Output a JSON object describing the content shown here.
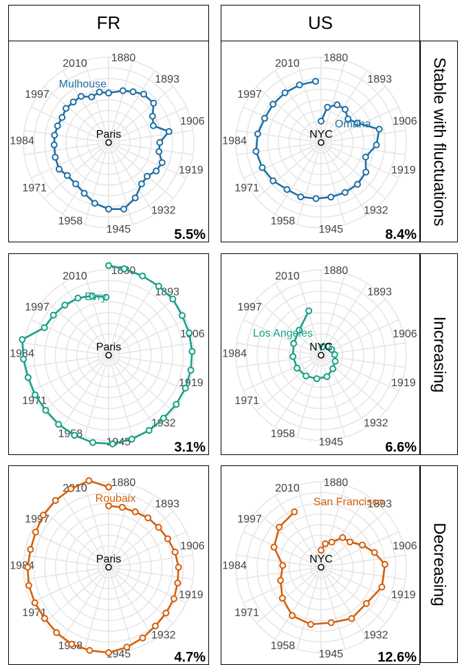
{
  "columns": [
    {
      "label": "FR",
      "center": "Paris"
    },
    {
      "label": "US",
      "center": "NYC"
    }
  ],
  "rows": [
    {
      "label": "Stable with fluctuations",
      "color": "#1f6fa6"
    },
    {
      "label": "Increasing",
      "color": "#16a085"
    },
    {
      "label": "Decreasing",
      "color": "#d35f0b"
    }
  ],
  "year_ticks": [
    "1880",
    "1893",
    "1906",
    "1919",
    "1932",
    "1945",
    "1958",
    "1971",
    "1984",
    "1997",
    "2010"
  ],
  "chart_data": [
    {
      "type": "line",
      "subtype": "polar",
      "panel": "FR / Stable with fluctuations",
      "city": "Mulhouse",
      "share": "5.5%",
      "color": "#1f6fa6",
      "x": [
        1876,
        1882,
        1886,
        1890,
        1895,
        1899,
        1903,
        1907,
        1911,
        1915,
        1919,
        1923,
        1927,
        1931,
        1936,
        1941,
        1946,
        1951,
        1956,
        1961,
        1966,
        1970,
        1975,
        1980,
        1984,
        1988,
        1992,
        1996,
        2000,
        2004,
        2008,
        2012,
        2016
      ],
      "y": [
        0.58,
        0.63,
        0.66,
        0.7,
        0.7,
        0.6,
        0.56,
        0.72,
        0.6,
        0.6,
        0.67,
        0.65,
        0.6,
        0.62,
        0.72,
        0.8,
        0.78,
        0.73,
        0.66,
        0.62,
        0.62,
        0.66,
        0.65,
        0.64,
        0.64,
        0.63,
        0.62,
        0.64,
        0.63,
        0.63,
        0.57,
        0.6,
        0.58
      ]
    },
    {
      "type": "line",
      "subtype": "polar",
      "panel": "US / Stable with fluctuations",
      "city": "Omaha",
      "share": "8.4%",
      "color": "#1f6fa6",
      "x": [
        1876,
        1880,
        1885,
        1890,
        1895,
        1900,
        1906,
        1912,
        1918,
        1924,
        1930,
        1936,
        1942,
        1948,
        1954,
        1960,
        1966,
        1972,
        1978,
        1984,
        1990,
        1996,
        2002,
        2008,
        2014
      ],
      "y": [
        0.25,
        0.42,
        0.48,
        0.48,
        0.42,
        0.48,
        0.7,
        0.65,
        0.55,
        0.63,
        0.65,
        0.65,
        0.65,
        0.66,
        0.68,
        0.68,
        0.72,
        0.75,
        0.77,
        0.75,
        0.72,
        0.72,
        0.72,
        0.72,
        0.72
      ]
    },
    {
      "type": "line",
      "subtype": "polar",
      "panel": "FR / Increasing",
      "city": "Evry",
      "share": "3.1%",
      "color": "#16a085",
      "x": [
        1876,
        1880,
        1885,
        1890,
        1895,
        1900,
        1905,
        1910,
        1915,
        1920,
        1925,
        1930,
        1935,
        1940,
        1945,
        1950,
        1955,
        1960,
        1965,
        1970,
        1975,
        1980,
        1985,
        1990,
        1995,
        2000,
        2005,
        2010,
        2015
      ],
      "y": [
        1.05,
        1.03,
        1.01,
        1.0,
        1.0,
        0.98,
        0.98,
        0.98,
        0.98,
        0.98,
        0.98,
        0.98,
        1.0,
        1.02,
        1.04,
        1.04,
        1.02,
        1.0,
        0.98,
        0.98,
        0.98,
        1.0,
        1.03,
        0.82,
        0.8,
        0.78,
        0.76,
        0.72,
        0.68
      ]
    },
    {
      "type": "line",
      "subtype": "polar",
      "panel": "US / Increasing",
      "city": "Los Angeles",
      "share": "6.6%",
      "color": "#16a085",
      "x": [
        1880,
        1890,
        1900,
        1910,
        1920,
        1930,
        1940,
        1950,
        1960,
        1970,
        1980,
        1990,
        2000,
        2010
      ],
      "y": [
        0.1,
        0.13,
        0.14,
        0.16,
        0.18,
        0.21,
        0.26,
        0.28,
        0.3,
        0.32,
        0.33,
        0.35,
        0.39,
        0.54
      ]
    },
    {
      "type": "line",
      "subtype": "polar",
      "panel": "FR / Decreasing",
      "city": "Roubaix",
      "share": "4.7%",
      "color": "#d35f0b",
      "x": [
        1876,
        1881,
        1886,
        1891,
        1896,
        1901,
        1906,
        1911,
        1916,
        1921,
        1926,
        1931,
        1936,
        1941,
        1946,
        1951,
        1956,
        1961,
        1966,
        1971,
        1976,
        1981,
        1986,
        1991,
        1996,
        2001,
        2006,
        2011,
        2016
      ],
      "y": [
        0.72,
        0.72,
        0.72,
        0.74,
        0.75,
        0.77,
        0.8,
        0.82,
        0.83,
        0.85,
        0.86,
        0.88,
        0.92,
        0.96,
        1.0,
        1.0,
        1.0,
        0.98,
        0.96,
        0.96,
        0.96,
        0.95,
        0.94,
        0.95,
        0.98,
        1.0,
        1.02,
        1.04,
        0.94
      ]
    },
    {
      "type": "line",
      "subtype": "polar",
      "panel": "US / Decreasing",
      "city": "San Francisco",
      "share": "12.6%",
      "color": "#d35f0b",
      "x": [
        1876,
        1880,
        1885,
        1890,
        1895,
        1900,
        1905,
        1910,
        1918,
        1926,
        1934,
        1942,
        1950,
        1958,
        1966,
        1974,
        1982,
        1990,
        1998,
        2006
      ],
      "y": [
        0.2,
        0.28,
        0.32,
        0.43,
        0.45,
        0.55,
        0.65,
        0.75,
        0.75,
        0.68,
        0.7,
        0.66,
        0.68,
        0.66,
        0.58,
        0.5,
        0.45,
        0.6,
        0.68,
        0.72
      ]
    }
  ]
}
